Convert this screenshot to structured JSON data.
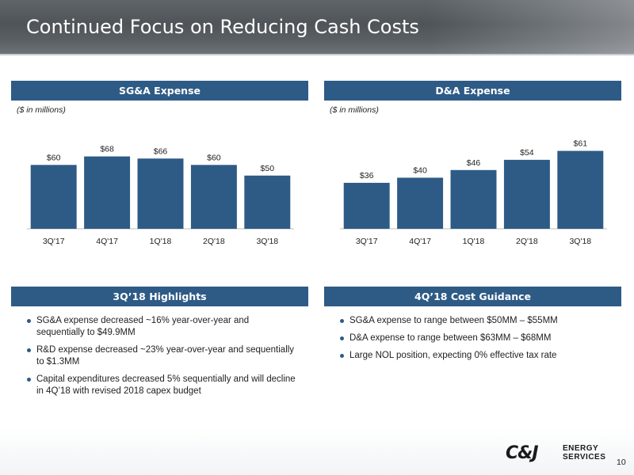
{
  "slide": {
    "title": "Continued Focus on Reducing Cash Costs",
    "page_number": "10"
  },
  "sga_panel": {
    "header": "SG&A Expense",
    "units": "($ in millions)"
  },
  "da_panel": {
    "header": "D&A Expense",
    "units": "($ in millions)"
  },
  "chart_data": [
    {
      "type": "bar",
      "title": "SG&A Expense",
      "categories": [
        "3Q'17",
        "4Q'17",
        "1Q'18",
        "2Q'18",
        "3Q'18"
      ],
      "values": [
        60,
        68,
        66,
        60,
        50
      ],
      "data_labels": [
        "$60",
        "$68",
        "$66",
        "$60",
        "$50"
      ],
      "bar_color": "#2e5b86",
      "ylim": [
        0,
        90
      ],
      "grid": false,
      "legend": "none"
    },
    {
      "type": "bar",
      "title": "D&A Expense",
      "categories": [
        "3Q'17",
        "4Q'17",
        "1Q'18",
        "2Q'18",
        "3Q'18"
      ],
      "values": [
        36,
        40,
        46,
        54,
        61
      ],
      "data_labels": [
        "$36",
        "$40",
        "$46",
        "$54",
        "$61"
      ],
      "bar_color": "#2e5b86",
      "ylim": [
        0,
        75
      ],
      "grid": false,
      "legend": "none"
    }
  ],
  "highlights": {
    "header": "3Q’18 Highlights",
    "items": [
      "SG&A expense decreased ~16% year-over-year and sequentially to $49.9MM",
      "R&D expense decreased ~23% year-over-year and sequentially to $1.3MM",
      "Capital expenditures decreased 5% sequentially and will decline in 4Q’18 with revised 2018 capex budget"
    ]
  },
  "guidance": {
    "header": "4Q’18 Cost Guidance",
    "items": [
      "SG&A expense to range between $50MM – $55MM",
      "D&A expense to range between $63MM – $68MM",
      "Large NOL position, expecting 0% effective tax rate"
    ]
  },
  "logo": {
    "main": "C&J",
    "line1": "ENERGY",
    "line2": "SERVICES"
  },
  "colors": {
    "header_blue": "#2e5b86",
    "bar_blue": "#2e5b86"
  }
}
